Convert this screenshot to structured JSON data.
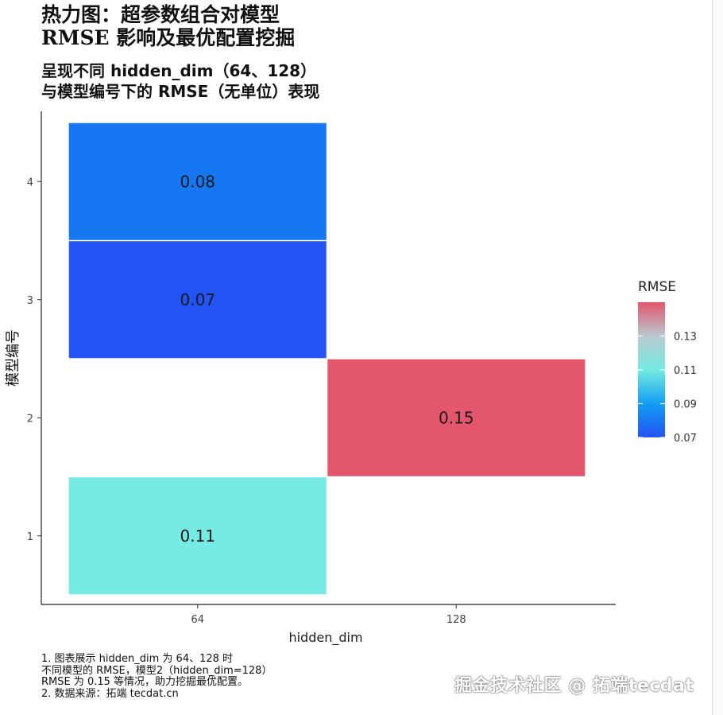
{
  "chart_data": {
    "type": "heatmap",
    "title": [
      "热力图：超参数组合对模型",
      "RMSE 影响及最优配置挖掘"
    ],
    "subtitle": [
      "呈现不同 hidden_dim（64、128）",
      "与模型编号下的 RMSE（无单位）表现"
    ],
    "xlabel": "hidden_dim",
    "ylabel": "模型编号",
    "x_categories": [
      "64",
      "128"
    ],
    "y_categories": [
      "1",
      "2",
      "3",
      "4"
    ],
    "cells": [
      {
        "x": "64",
        "y": "4",
        "value": 0.08,
        "label": "0.08",
        "color": "#1677f2"
      },
      {
        "x": "64",
        "y": "3",
        "value": 0.07,
        "label": "0.07",
        "color": "#2353f5"
      },
      {
        "x": "128",
        "y": "2",
        "value": 0.15,
        "label": "0.15",
        "color": "#e3566c"
      },
      {
        "x": "64",
        "y": "1",
        "value": 0.11,
        "label": "0.11",
        "color": "#75ebe3"
      }
    ],
    "legend": {
      "title": "RMSE",
      "position": "right",
      "range": [
        0.07,
        0.15
      ],
      "ticks": [
        "0.07",
        "0.09",
        "0.11",
        "0.13"
      ],
      "tick_values": [
        0.07,
        0.09,
        0.11,
        0.13
      ],
      "gradient": [
        {
          "value": 0.07,
          "color": "#2353f5"
        },
        {
          "value": 0.09,
          "color": "#119ef2"
        },
        {
          "value": 0.11,
          "color": "#75ebe3"
        },
        {
          "value": 0.13,
          "color": "#b8c9cf"
        },
        {
          "value": 0.15,
          "color": "#e3566c"
        }
      ]
    },
    "grid": false,
    "caption": [
      "1. 图表展示 hidden_dim 为 64、128 时",
      "不同模型的 RMSE，模型2（hidden_dim=128）",
      "RMSE 为 0.15 等情况，助力挖掘最优配置。",
      "2. 数据来源：拓端 tecdat.cn"
    ]
  },
  "watermark": "掘金技术社区 @ 拓端tecdat"
}
